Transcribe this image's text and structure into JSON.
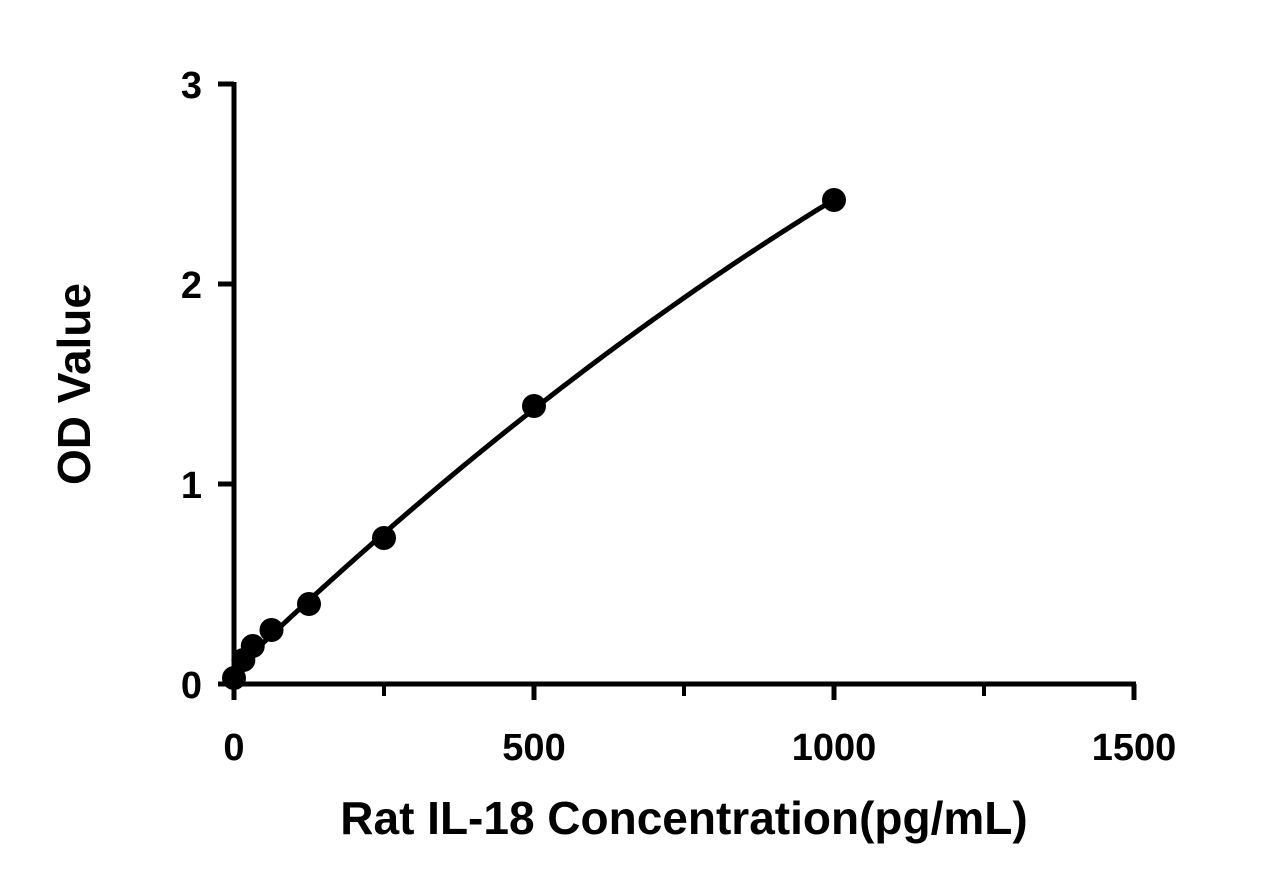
{
  "chart_data": {
    "type": "scatter",
    "title": "",
    "xlabel": "Rat IL-18 Concentration(pg/mL)",
    "ylabel": "OD Value",
    "xlim": [
      0,
      1500
    ],
    "ylim": [
      0,
      3
    ],
    "x_ticks": [
      "0",
      "500",
      "1000",
      "1500"
    ],
    "y_ticks": [
      "0",
      "1",
      "2",
      "3"
    ],
    "x_minor_tick_values": [
      250,
      750,
      1250
    ],
    "y_minor_tick_values": [],
    "grid": false,
    "legend": "none",
    "series": [
      {
        "x": [
          0,
          15.6,
          31.25,
          62.5,
          125,
          250,
          500,
          1000
        ],
        "y": [
          0.03,
          0.12,
          0.19,
          0.27,
          0.4,
          0.73,
          1.39,
          2.42
        ],
        "marker": "circle",
        "color": "#000000",
        "fit_curve": true
      }
    ]
  }
}
